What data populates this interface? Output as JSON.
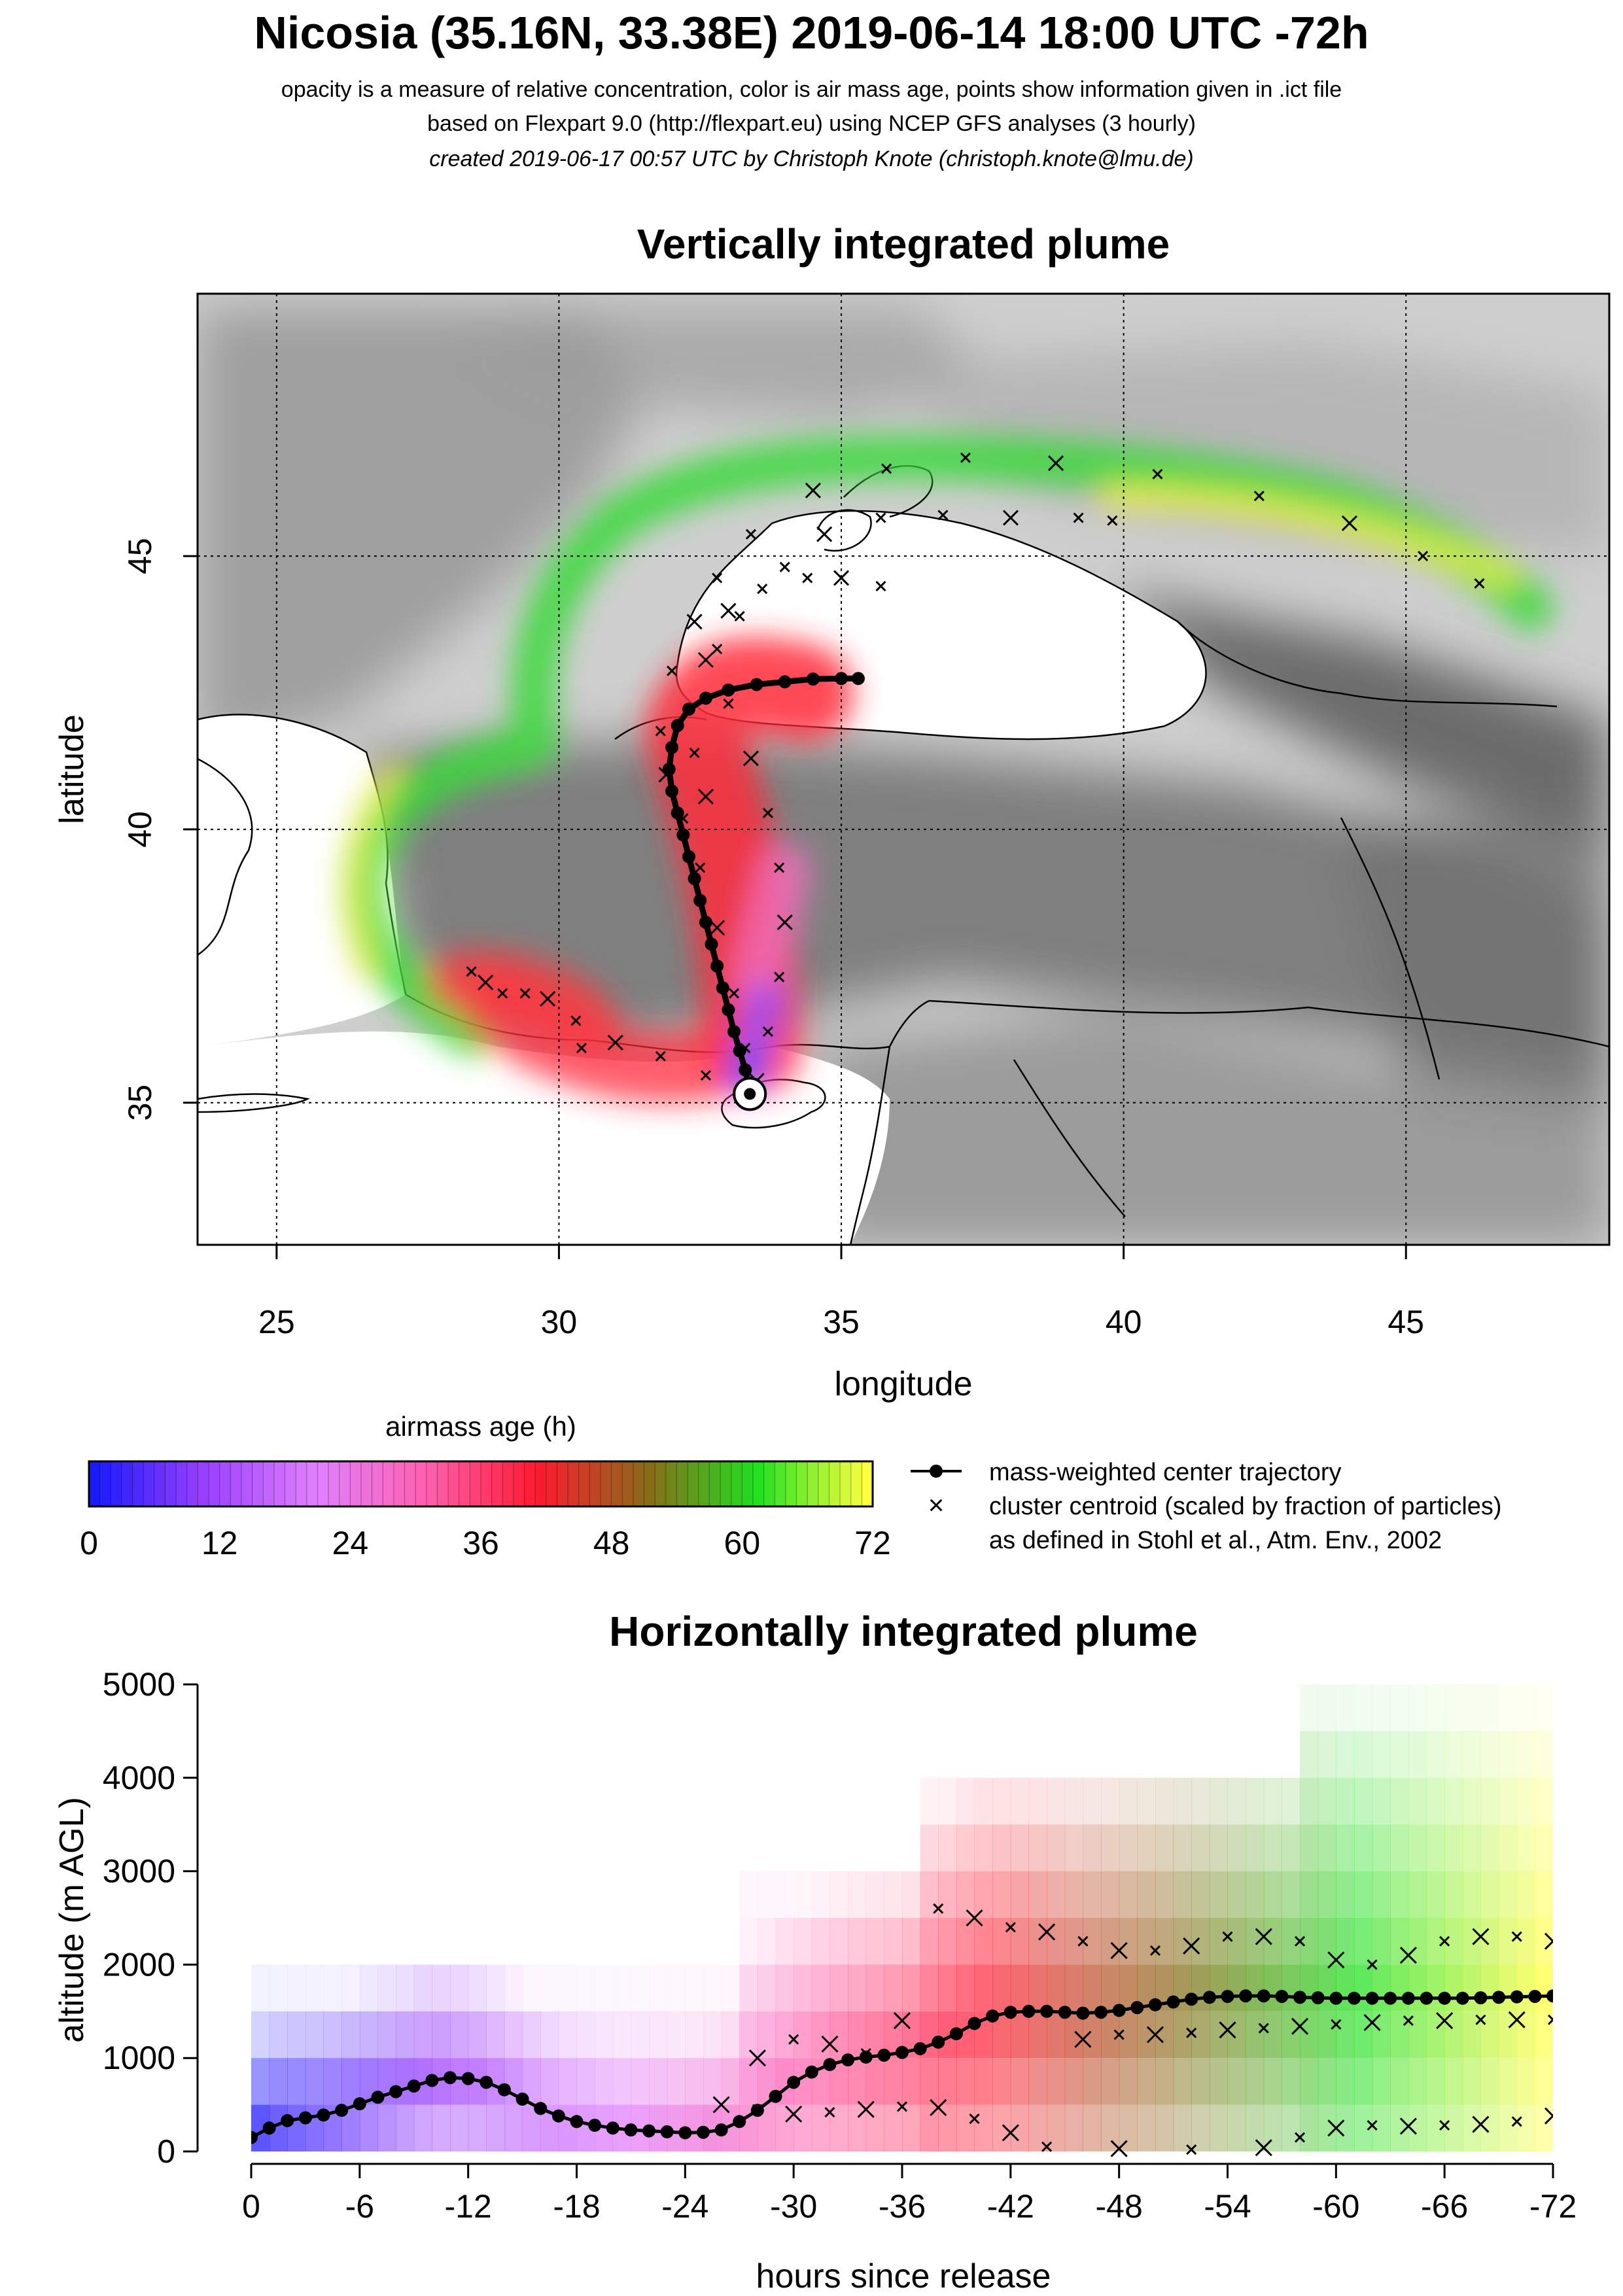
{
  "header": {
    "title": "Nicosia (35.16N, 33.38E) 2019-06-14 18:00 UTC -72h",
    "subtitle_1": "opacity is a measure of relative concentration, color is air mass age, points show information given in .ict file",
    "subtitle_2": "based on Flexpart 9.0 (http://flexpart.eu) using NCEP GFS analyses (3 hourly)",
    "subtitle_3": "created 2019-06-17 00:57 UTC by Christoph Knote (christoph.knote@lmu.de)"
  },
  "colors": {
    "age_scale": [
      "#1a1aff",
      "#9a40ff",
      "#e080ff",
      "#ff60b0",
      "#ff1a30",
      "#8a6a1a",
      "#20e020",
      "#ffff40"
    ],
    "center_trajectory": "#000000",
    "land_shading": "#8a8a8a"
  },
  "legend": {
    "colorbar_title": "airmass age (h)",
    "colorbar_ticks": [
      "0",
      "12",
      "24",
      "36",
      "48",
      "60",
      "72"
    ],
    "center_label": "mass-weighted center trajectory",
    "cluster_label_1": "cluster centroid (scaled by fraction of particles)",
    "cluster_label_2": "as defined in Stohl et al., Atm. Env., 2002"
  },
  "chart_data": [
    {
      "type": "scatter",
      "title": "Vertically integrated plume",
      "xlabel": "longitude",
      "ylabel": "latitude",
      "xlim": [
        23.6,
        48.6
      ],
      "ylim": [
        32.4,
        49.8
      ],
      "xticks": [
        "25",
        "30",
        "35",
        "40",
        "45"
      ],
      "yticks": [
        "35",
        "40",
        "45"
      ],
      "grid": true,
      "release_point": {
        "lon": 33.38,
        "lat": 35.16
      },
      "series": [
        {
          "kind": "center_trajectory",
          "points": [
            [
              33.38,
              35.16
            ],
            [
              33.35,
              35.35
            ],
            [
              33.3,
              35.6
            ],
            [
              33.2,
              35.95
            ],
            [
              33.1,
              36.3
            ],
            [
              33.0,
              36.7
            ],
            [
              32.9,
              37.1
            ],
            [
              32.8,
              37.5
            ],
            [
              32.7,
              37.9
            ],
            [
              32.6,
              38.3
            ],
            [
              32.5,
              38.7
            ],
            [
              32.4,
              39.1
            ],
            [
              32.3,
              39.5
            ],
            [
              32.2,
              39.9
            ],
            [
              32.1,
              40.3
            ],
            [
              32.0,
              40.7
            ],
            [
              31.95,
              41.1
            ],
            [
              32.0,
              41.5
            ],
            [
              32.1,
              41.9
            ],
            [
              32.3,
              42.2
            ],
            [
              32.6,
              42.4
            ],
            [
              33.0,
              42.55
            ],
            [
              33.5,
              42.65
            ],
            [
              34.0,
              42.7
            ],
            [
              34.5,
              42.75
            ],
            [
              35.0,
              42.76
            ],
            [
              35.3,
              42.76
            ]
          ]
        },
        {
          "kind": "cluster_trajectory",
          "points": [
            [
              33.4,
              35.3
            ],
            [
              33.3,
              36.0
            ],
            [
              33.1,
              37.0
            ],
            [
              32.8,
              38.2
            ],
            [
              32.5,
              39.3
            ],
            [
              32.2,
              40.2
            ],
            [
              31.9,
              41.0
            ],
            [
              31.8,
              41.8
            ],
            [
              32.0,
              42.9
            ],
            [
              32.4,
              43.8
            ],
            [
              32.8,
              44.6
            ],
            [
              33.4,
              45.4
            ],
            [
              34.5,
              46.2
            ],
            [
              35.8,
              46.6
            ],
            [
              37.2,
              46.8
            ],
            [
              38.8,
              46.7
            ],
            [
              40.6,
              46.5
            ],
            [
              42.4,
              46.1
            ],
            [
              44.0,
              45.6
            ],
            [
              45.3,
              45.0
            ],
            [
              46.3,
              44.5
            ]
          ]
        },
        {
          "kind": "cluster_trajectory",
          "points": [
            [
              33.5,
              35.4
            ],
            [
              33.7,
              36.3
            ],
            [
              33.9,
              37.3
            ],
            [
              34.0,
              38.3
            ],
            [
              33.9,
              39.3
            ],
            [
              33.7,
              40.3
            ],
            [
              33.4,
              41.3
            ],
            [
              33.0,
              42.3
            ],
            [
              32.8,
              43.3
            ],
            [
              33.0,
              44.0
            ],
            [
              33.6,
              44.4
            ],
            [
              34.4,
              44.6
            ],
            [
              35.0,
              44.6
            ],
            [
              35.7,
              44.45
            ]
          ]
        },
        {
          "kind": "cluster_trajectory",
          "points": [
            [
              33.3,
              35.25
            ],
            [
              32.6,
              35.5
            ],
            [
              31.8,
              35.85
            ],
            [
              31.0,
              36.1
            ],
            [
              30.4,
              36.0
            ],
            [
              30.3,
              36.5
            ],
            [
              29.8,
              36.9
            ],
            [
              29.4,
              37.0
            ],
            [
              29.0,
              37.0
            ],
            [
              28.7,
              37.2
            ],
            [
              28.45,
              37.4
            ]
          ]
        },
        {
          "kind": "cluster_trajectory",
          "points": [
            [
              32.6,
              40.6
            ],
            [
              32.4,
              41.4
            ],
            [
              32.3,
              42.2
            ],
            [
              32.6,
              43.1
            ],
            [
              33.2,
              43.9
            ],
            [
              34.0,
              44.8
            ],
            [
              34.7,
              45.4
            ],
            [
              35.7,
              45.7
            ],
            [
              36.8,
              45.75
            ],
            [
              38.0,
              45.7
            ],
            [
              39.2,
              45.7
            ],
            [
              39.8,
              45.65
            ]
          ]
        }
      ]
    },
    {
      "type": "scatter",
      "title": "Horizontally integrated plume",
      "xlabel": "hours since release",
      "ylabel": "altitude (m AGL)",
      "xlim": [
        0,
        -72
      ],
      "ylim": [
        0,
        5000
      ],
      "xticks": [
        "0",
        "-6",
        "-12",
        "-18",
        "-24",
        "-30",
        "-36",
        "-42",
        "-48",
        "-54",
        "-60",
        "-66",
        "-72"
      ],
      "yticks": [
        "0",
        "1000",
        "2000",
        "3000",
        "4000",
        "5000"
      ],
      "series": [
        {
          "kind": "center_trajectory",
          "x": [
            0,
            -1,
            -2,
            -3,
            -4,
            -5,
            -6,
            -7,
            -8,
            -9,
            -10,
            -11,
            -12,
            -13,
            -14,
            -15,
            -16,
            -17,
            -18,
            -19,
            -20,
            -21,
            -22,
            -23,
            -24,
            -25,
            -26,
            -27,
            -28,
            -29,
            -30,
            -31,
            -32,
            -33,
            -34,
            -35,
            -36,
            -37,
            -38,
            -39,
            -40,
            -41,
            -42,
            -43,
            -44,
            -45,
            -46,
            -47,
            -48,
            -49,
            -50,
            -51,
            -52,
            -53,
            -54,
            -55,
            -56,
            -57,
            -58,
            -59,
            -60,
            -61,
            -62,
            -63,
            -64,
            -65,
            -66,
            -67,
            -68,
            -69,
            -70,
            -71,
            -72
          ],
          "y": [
            150,
            250,
            330,
            360,
            390,
            440,
            510,
            580,
            640,
            700,
            760,
            790,
            780,
            740,
            660,
            560,
            460,
            380,
            320,
            280,
            250,
            230,
            220,
            210,
            200,
            205,
            230,
            320,
            440,
            590,
            740,
            850,
            930,
            980,
            1010,
            1030,
            1060,
            1100,
            1170,
            1260,
            1370,
            1450,
            1490,
            1500,
            1500,
            1490,
            1480,
            1490,
            1510,
            1540,
            1570,
            1600,
            1630,
            1650,
            1660,
            1665,
            1665,
            1660,
            1650,
            1645,
            1640,
            1640,
            1640,
            1640,
            1640,
            1640,
            1640,
            1640,
            1645,
            1650,
            1655,
            1660,
            1665
          ]
        },
        {
          "kind": "cluster_trajectory",
          "x": [
            -28,
            -30,
            -32,
            -34,
            -36,
            -38,
            -40,
            -42,
            -44,
            -46,
            -48,
            -50,
            -52,
            -54,
            -56,
            -58,
            -60,
            -62,
            -64,
            -66,
            -68,
            -70,
            -72
          ],
          "y": [
            1000,
            1200,
            1150,
            1050,
            1400,
            2600,
            2500,
            2400,
            2350,
            2250,
            2150,
            2150,
            2200,
            2300,
            2300,
            2250,
            2050,
            2000,
            2100,
            2250,
            2300,
            2300,
            2250
          ]
        },
        {
          "kind": "cluster_trajectory",
          "x": [
            -46,
            -48,
            -50,
            -52,
            -54,
            -56,
            -58,
            -60,
            -62,
            -64,
            -66,
            -68,
            -70,
            -72
          ],
          "y": [
            1200,
            1250,
            1250,
            1270,
            1300,
            1320,
            1340,
            1360,
            1380,
            1400,
            1400,
            1410,
            1410,
            1410
          ]
        },
        {
          "kind": "cluster_trajectory",
          "x": [
            -26,
            -28,
            -30,
            -32,
            -34,
            -36,
            -38,
            -40,
            -42,
            -44,
            -48,
            -52,
            -56,
            -58,
            -60,
            -62,
            -64,
            -66,
            -68,
            -70,
            -72
          ],
          "y": [
            500,
            450,
            400,
            420,
            450,
            480,
            470,
            350,
            200,
            50,
            30,
            20,
            40,
            150,
            250,
            280,
            270,
            280,
            290,
            320,
            380
          ]
        }
      ]
    }
  ]
}
